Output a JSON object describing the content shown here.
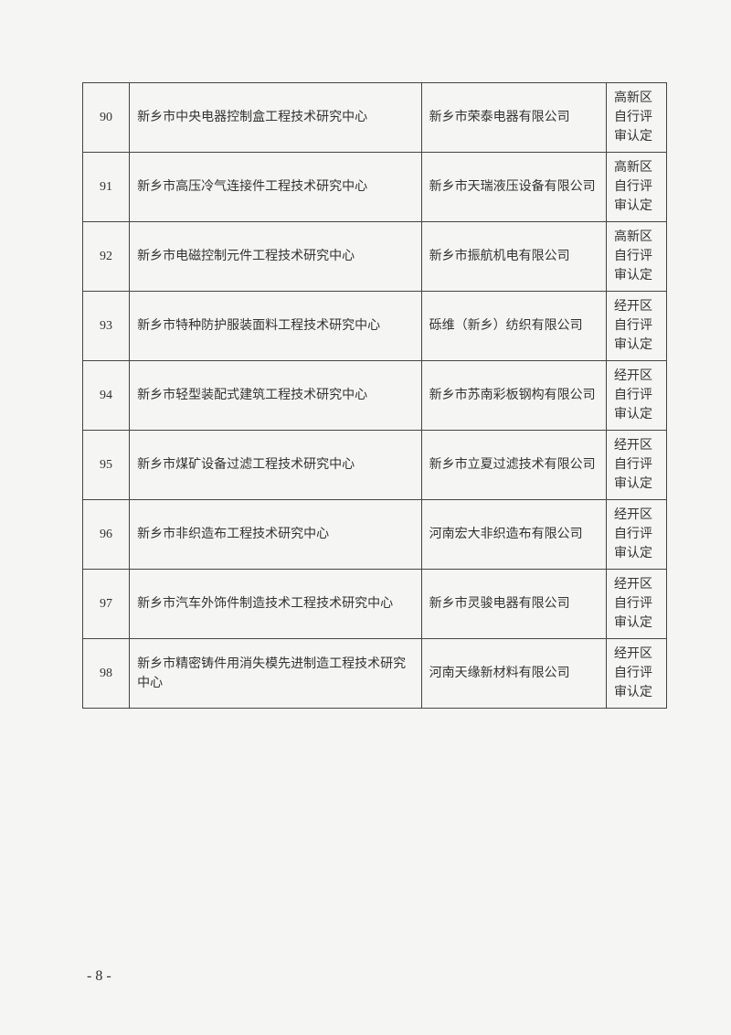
{
  "table": {
    "rows": [
      {
        "num": "90",
        "center": "新乡市中央电器控制盒工程技术研究中心",
        "company": "新乡市荣泰电器有限公司",
        "remark": "高新区自行评审认定"
      },
      {
        "num": "91",
        "center": "新乡市高压冷气连接件工程技术研究中心",
        "company": "新乡市天瑞液压设备有限公司",
        "remark": "高新区自行评审认定"
      },
      {
        "num": "92",
        "center": "新乡市电磁控制元件工程技术研究中心",
        "company": "新乡市振航机电有限公司",
        "remark": "高新区自行评审认定"
      },
      {
        "num": "93",
        "center": "新乡市特种防护服装面料工程技术研究中心",
        "company": "砾维（新乡）纺织有限公司",
        "remark": "经开区自行评审认定"
      },
      {
        "num": "94",
        "center": "新乡市轻型装配式建筑工程技术研究中心",
        "company": "新乡市苏南彩板钢构有限公司",
        "remark": "经开区自行评审认定"
      },
      {
        "num": "95",
        "center": "新乡市煤矿设备过滤工程技术研究中心",
        "company": "新乡市立夏过滤技术有限公司",
        "remark": "经开区自行评审认定"
      },
      {
        "num": "96",
        "center": "新乡市非织造布工程技术研究中心",
        "company": "河南宏大非织造布有限公司",
        "remark": "经开区自行评审认定"
      },
      {
        "num": "97",
        "center": "新乡市汽车外饰件制造技术工程技术研究中心",
        "company": "新乡市灵骏电器有限公司",
        "remark": "经开区自行评审认定"
      },
      {
        "num": "98",
        "center": "新乡市精密铸件用消失模先进制造工程技术研究中心",
        "company": "河南天缘新材料有限公司",
        "remark": "经开区自行评审认定"
      }
    ]
  },
  "pageNumber": "- 8 -"
}
